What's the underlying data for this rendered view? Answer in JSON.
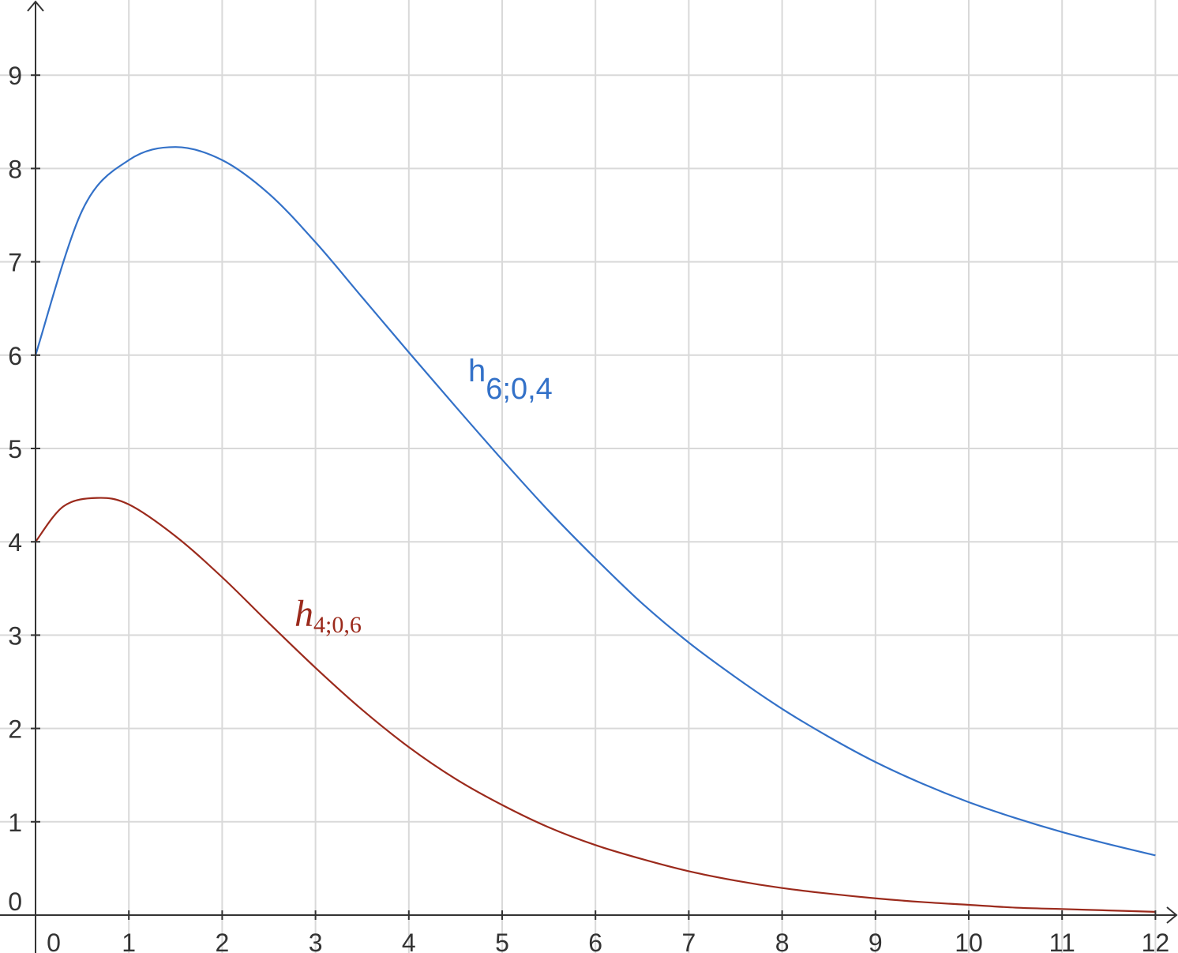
{
  "chart_data": {
    "type": "line",
    "title": "",
    "xlabel": "",
    "ylabel": "",
    "xlim": [
      0,
      12
    ],
    "ylim": [
      0,
      9
    ],
    "grid": true,
    "x_ticks": [
      "0",
      "1",
      "2",
      "3",
      "4",
      "5",
      "6",
      "7",
      "8",
      "9",
      "10",
      "11",
      "12"
    ],
    "y_ticks": [
      "0",
      "1",
      "2",
      "3",
      "4",
      "5",
      "6",
      "7",
      "8",
      "9"
    ],
    "series": [
      {
        "name": "h6;0,4",
        "name_main": "h",
        "name_sub": "6;0,4",
        "color": "#3371c8",
        "x": [
          0,
          0.5,
          1,
          1.5,
          2,
          2.5,
          3,
          3.5,
          4,
          4.5,
          5,
          5.5,
          6,
          6.5,
          7,
          7.5,
          8,
          8.5,
          9,
          9.5,
          10,
          10.5,
          11,
          11.5,
          12
        ],
        "y": [
          6.0,
          7.55,
          8.09,
          8.23,
          8.09,
          7.73,
          7.21,
          6.62,
          6.03,
          5.45,
          4.88,
          4.33,
          3.82,
          3.34,
          2.92,
          2.55,
          2.21,
          1.91,
          1.64,
          1.41,
          1.21,
          1.04,
          0.89,
          0.76,
          0.64
        ]
      },
      {
        "name": "h4;0,6",
        "name_main": "h",
        "name_sub": "4;0,6",
        "color": "#9b2a1c",
        "x": [
          0,
          0.3,
          0.66,
          1,
          1.5,
          2,
          2.5,
          3,
          3.5,
          4,
          4.5,
          5,
          5.5,
          6,
          6.5,
          7,
          7.5,
          8,
          8.5,
          9,
          9.5,
          10,
          10.5,
          11,
          11.5,
          12
        ],
        "y": [
          4.0,
          4.38,
          4.47,
          4.4,
          4.06,
          3.62,
          3.13,
          2.65,
          2.2,
          1.8,
          1.46,
          1.18,
          0.94,
          0.75,
          0.6,
          0.47,
          0.37,
          0.29,
          0.23,
          0.18,
          0.14,
          0.11,
          0.08,
          0.065,
          0.05,
          0.035
        ]
      }
    ]
  }
}
